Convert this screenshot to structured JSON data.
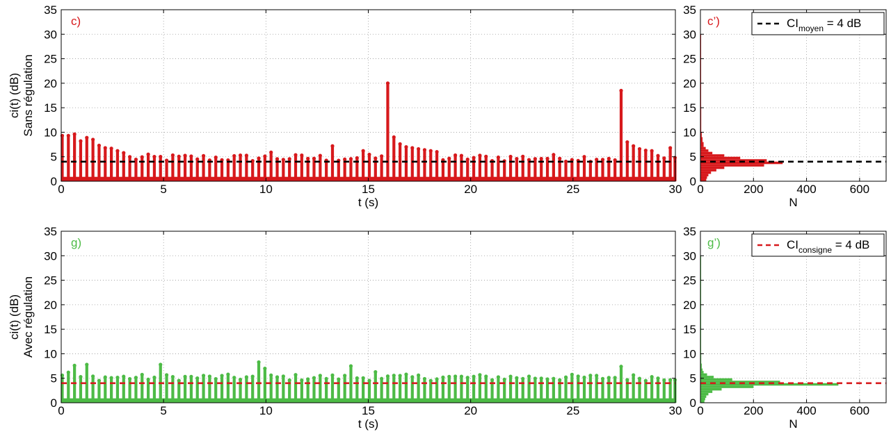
{
  "chart_data": [
    {
      "type": "scatter",
      "panel": "c)",
      "color": "#d7191c",
      "xlabel": "t (s)",
      "ylabel_lines": [
        "ci(t) (dB)",
        "Sans régulation"
      ],
      "xlim": [
        0,
        30
      ],
      "ylim": [
        0,
        35
      ],
      "xticks": [
        0,
        5,
        10,
        15,
        20,
        25,
        30
      ],
      "yticks": [
        0,
        5,
        10,
        15,
        20,
        25,
        30,
        35
      ],
      "grid": true,
      "reference_line": {
        "y": 4,
        "color": "#000000",
        "style": "dashed"
      },
      "burst_period_s": 0.3,
      "peaks": [
        {
          "x": 0.05,
          "y": 9.3
        },
        {
          "x": 0.35,
          "y": 9.3
        },
        {
          "x": 0.65,
          "y": 9.6
        },
        {
          "x": 0.95,
          "y": 8.2
        },
        {
          "x": 1.25,
          "y": 8.9
        },
        {
          "x": 1.55,
          "y": 8.5
        },
        {
          "x": 1.85,
          "y": 7.3
        },
        {
          "x": 2.15,
          "y": 6.8
        },
        {
          "x": 2.45,
          "y": 6.7
        },
        {
          "x": 2.75,
          "y": 6.2
        },
        {
          "x": 3.05,
          "y": 5.8
        },
        {
          "x": 10.2,
          "y": 5.9
        },
        {
          "x": 13.2,
          "y": 7.2
        },
        {
          "x": 14.6,
          "y": 6.2
        },
        {
          "x": 16.0,
          "y": 20.0
        },
        {
          "x": 16.3,
          "y": 9.0
        },
        {
          "x": 16.6,
          "y": 7.6
        },
        {
          "x": 16.9,
          "y": 7.0
        },
        {
          "x": 17.2,
          "y": 6.8
        },
        {
          "x": 17.5,
          "y": 6.6
        },
        {
          "x": 17.8,
          "y": 6.4
        },
        {
          "x": 18.1,
          "y": 6.2
        },
        {
          "x": 18.4,
          "y": 6.0
        },
        {
          "x": 27.4,
          "y": 18.5
        },
        {
          "x": 27.7,
          "y": 8.0
        },
        {
          "x": 28.0,
          "y": 7.2
        },
        {
          "x": 28.3,
          "y": 6.6
        },
        {
          "x": 28.6,
          "y": 6.3
        },
        {
          "x": 28.9,
          "y": 6.2
        },
        {
          "x": 29.8,
          "y": 6.8
        }
      ],
      "baseline_peak_range": [
        4.0,
        5.5
      ]
    },
    {
      "type": "bar",
      "orientation": "horizontal",
      "panel": "c’)",
      "color": "#d7191c",
      "xlabel": "N",
      "xlim": [
        0,
        700
      ],
      "ylim": [
        0,
        35
      ],
      "xticks": [
        0,
        200,
        400,
        600
      ],
      "yticks": [
        0,
        5,
        10,
        15,
        20,
        25,
        30,
        35
      ],
      "grid": true,
      "reference_line": {
        "y": 4,
        "color": "#000000",
        "style": "dashed"
      },
      "histogram": {
        "y": [
          0.5,
          1.0,
          1.5,
          2.0,
          2.5,
          3.0,
          3.5,
          4.0,
          4.5,
          5.0,
          5.5,
          6.0,
          6.5,
          7.0,
          8.0,
          9.0,
          10.0,
          15.0,
          20.0,
          30.0
        ],
        "N": [
          22,
          25,
          30,
          40,
          60,
          90,
          240,
          310,
          250,
          150,
          90,
          45,
          30,
          20,
          12,
          8,
          5,
          3,
          2,
          1
        ]
      },
      "legend": {
        "position": "top-right",
        "label": "CI",
        "subscript": "moyen",
        "suffix": " = 4 dB"
      }
    },
    {
      "type": "scatter",
      "panel": "g)",
      "color": "#4dbb46",
      "xlabel": "t (s)",
      "ylabel_lines": [
        "ci(t) (dB)",
        "Avec régulation"
      ],
      "xlim": [
        0,
        30
      ],
      "ylim": [
        0,
        35
      ],
      "xticks": [
        0,
        5,
        10,
        15,
        20,
        25,
        30
      ],
      "yticks": [
        0,
        5,
        10,
        15,
        20,
        25,
        30,
        35
      ],
      "grid": true,
      "reference_line": {
        "y": 4,
        "color": "#d7191c",
        "style": "dashed"
      },
      "burst_period_s": 0.3,
      "peaks": [
        {
          "x": 0.2,
          "y": 6.2
        },
        {
          "x": 0.5,
          "y": 7.6
        },
        {
          "x": 1.2,
          "y": 7.8
        },
        {
          "x": 4.9,
          "y": 7.8
        },
        {
          "x": 9.5,
          "y": 8.3
        },
        {
          "x": 9.8,
          "y": 7.0
        },
        {
          "x": 14.1,
          "y": 7.5
        },
        {
          "x": 15.2,
          "y": 6.3
        },
        {
          "x": 27.2,
          "y": 7.4
        }
      ],
      "baseline_peak_range": [
        4.5,
        5.8
      ]
    },
    {
      "type": "bar",
      "orientation": "horizontal",
      "panel": "g’)",
      "color": "#4dbb46",
      "xlabel": "N",
      "xlim": [
        0,
        700
      ],
      "ylim": [
        0,
        35
      ],
      "xticks": [
        0,
        200,
        400,
        600
      ],
      "yticks": [
        0,
        5,
        10,
        15,
        20,
        25,
        30,
        35
      ],
      "grid": true,
      "reference_line": {
        "y": 4,
        "color": "#d7191c",
        "style": "dashed"
      },
      "histogram": {
        "y": [
          0.5,
          1.0,
          1.5,
          2.0,
          2.5,
          3.0,
          3.5,
          4.0,
          4.5,
          5.0,
          5.5,
          6.0,
          6.5,
          7.0,
          8.0,
          10.0,
          20.0,
          30.0
        ],
        "N": [
          15,
          18,
          22,
          30,
          45,
          80,
          200,
          520,
          300,
          120,
          50,
          25,
          12,
          8,
          5,
          3,
          2,
          1
        ]
      },
      "legend": {
        "position": "top-right",
        "label": "CI",
        "subscript": "consigne",
        "suffix": " = 4 dB"
      }
    }
  ]
}
